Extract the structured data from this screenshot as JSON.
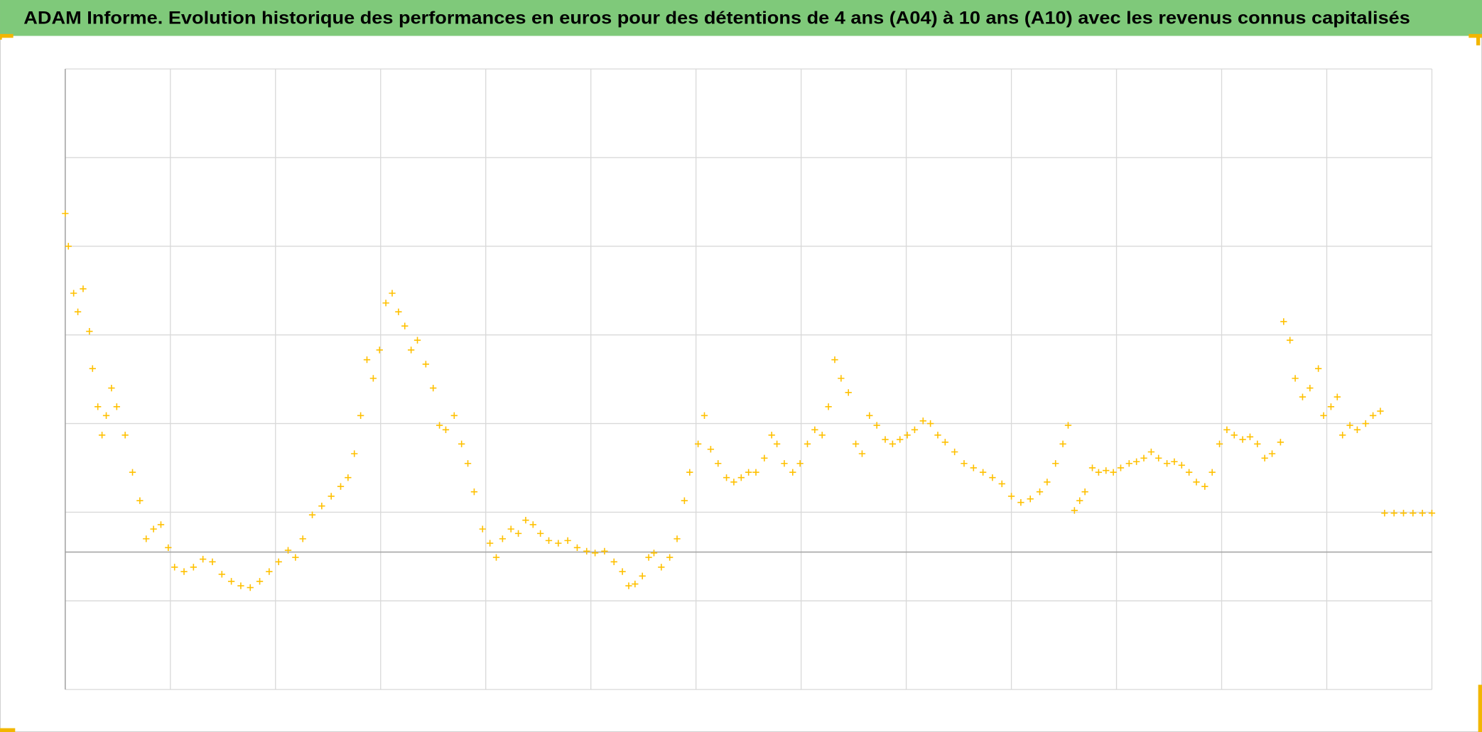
{
  "chart_data": {
    "type": "scatter",
    "title": "ADAM Informe. Evolution historique des performances en euros pour des détentions de 4 ans (A04) à 10 ans (A10) avec les revenus connus capitalisés",
    "color": "#ffc000",
    "marker": "+",
    "grid": true,
    "tick_labels": false,
    "x_axis_at": 1.55,
    "xlim": [
      0,
      13
    ],
    "xticks": [
      0,
      1,
      2,
      3,
      4,
      5,
      6,
      7,
      8,
      9,
      10,
      11,
      12,
      13
    ],
    "ylim": [
      0,
      7
    ],
    "yticks": [
      0,
      1,
      2,
      3,
      4,
      5,
      6,
      7
    ],
    "x": [
      0.0,
      0.03,
      0.08,
      0.12,
      0.17,
      0.23,
      0.26,
      0.31,
      0.35,
      0.39,
      0.44,
      0.49,
      0.57,
      0.64,
      0.71,
      0.77,
      0.84,
      0.91,
      0.98,
      1.04,
      1.13,
      1.22,
      1.31,
      1.4,
      1.49,
      1.58,
      1.67,
      1.76,
      1.85,
      1.94,
      2.03,
      2.12,
      2.19,
      2.26,
      2.35,
      2.44,
      2.53,
      2.62,
      2.69,
      2.75,
      2.81,
      2.87,
      2.93,
      2.99,
      3.05,
      3.11,
      3.17,
      3.23,
      3.29,
      3.35,
      3.43,
      3.5,
      3.56,
      3.62,
      3.7,
      3.77,
      3.83,
      3.89,
      3.97,
      4.04,
      4.1,
      4.16,
      4.24,
      4.31,
      4.38,
      4.45,
      4.52,
      4.6,
      4.69,
      4.78,
      4.87,
      4.96,
      5.04,
      5.13,
      5.22,
      5.3,
      5.36,
      5.42,
      5.49,
      5.55,
      5.6,
      5.67,
      5.75,
      5.82,
      5.89,
      5.94,
      6.02,
      6.08,
      6.14,
      6.21,
      6.29,
      6.36,
      6.43,
      6.5,
      6.57,
      6.65,
      6.72,
      6.77,
      6.84,
      6.92,
      6.99,
      7.06,
      7.13,
      7.2,
      7.26,
      7.32,
      7.38,
      7.45,
      7.52,
      7.58,
      7.65,
      7.72,
      7.8,
      7.87,
      7.94,
      8.01,
      8.08,
      8.16,
      8.23,
      8.3,
      8.37,
      8.46,
      8.55,
      8.64,
      8.73,
      8.82,
      8.91,
      9.0,
      9.09,
      9.18,
      9.27,
      9.34,
      9.42,
      9.49,
      9.54,
      9.6,
      9.65,
      9.7,
      9.77,
      9.83,
      9.9,
      9.97,
      10.04,
      10.12,
      10.19,
      10.26,
      10.33,
      10.4,
      10.48,
      10.55,
      10.62,
      10.69,
      10.76,
      10.84,
      10.91,
      10.98,
      11.05,
      11.12,
      11.2,
      11.27,
      11.34,
      11.41,
      11.48,
      11.56,
      11.59,
      11.65,
      11.7,
      11.77,
      11.84,
      11.92,
      11.97,
      12.04,
      12.1,
      12.15,
      12.22,
      12.29,
      12.37,
      12.44,
      12.51,
      12.55,
      12.64,
      12.73,
      12.82,
      12.91,
      13.0
    ],
    "values": [
      5.37,
      5.0,
      4.47,
      4.26,
      4.52,
      4.04,
      3.62,
      3.19,
      2.87,
      3.09,
      3.4,
      3.19,
      2.87,
      2.45,
      2.13,
      1.7,
      1.81,
      1.86,
      1.6,
      1.38,
      1.33,
      1.38,
      1.47,
      1.44,
      1.3,
      1.22,
      1.17,
      1.15,
      1.22,
      1.33,
      1.44,
      1.57,
      1.49,
      1.7,
      1.97,
      2.07,
      2.18,
      2.29,
      2.39,
      2.66,
      3.09,
      3.72,
      3.51,
      3.83,
      4.36,
      4.47,
      4.26,
      4.1,
      3.83,
      3.94,
      3.67,
      3.4,
      2.98,
      2.93,
      3.09,
      2.77,
      2.55,
      2.23,
      1.81,
      1.65,
      1.49,
      1.7,
      1.81,
      1.76,
      1.91,
      1.86,
      1.76,
      1.68,
      1.65,
      1.68,
      1.6,
      1.56,
      1.54,
      1.56,
      1.44,
      1.33,
      1.17,
      1.19,
      1.28,
      1.49,
      1.54,
      1.38,
      1.49,
      1.7,
      2.13,
      2.45,
      2.77,
      3.09,
      2.71,
      2.55,
      2.39,
      2.34,
      2.39,
      2.45,
      2.45,
      2.61,
      2.87,
      2.77,
      2.55,
      2.45,
      2.55,
      2.77,
      2.93,
      2.87,
      3.19,
      3.72,
      3.51,
      3.35,
      2.77,
      2.66,
      3.09,
      2.98,
      2.82,
      2.77,
      2.82,
      2.87,
      2.93,
      3.03,
      3.0,
      2.87,
      2.79,
      2.68,
      2.55,
      2.5,
      2.45,
      2.39,
      2.32,
      2.18,
      2.11,
      2.15,
      2.23,
      2.34,
      2.55,
      2.77,
      2.98,
      2.02,
      2.13,
      2.23,
      2.5,
      2.45,
      2.47,
      2.45,
      2.5,
      2.55,
      2.57,
      2.61,
      2.68,
      2.61,
      2.55,
      2.57,
      2.53,
      2.45,
      2.34,
      2.29,
      2.45,
      2.77,
      2.93,
      2.87,
      2.82,
      2.85,
      2.77,
      2.61,
      2.66,
      2.79,
      4.15,
      3.94,
      3.51,
      3.3,
      3.4,
      3.62,
      3.09,
      3.19,
      3.3,
      2.87,
      2.98,
      2.93,
      3.0,
      3.09,
      3.14,
      1.99,
      1.99,
      1.99,
      1.99,
      1.99,
      1.99
    ]
  }
}
